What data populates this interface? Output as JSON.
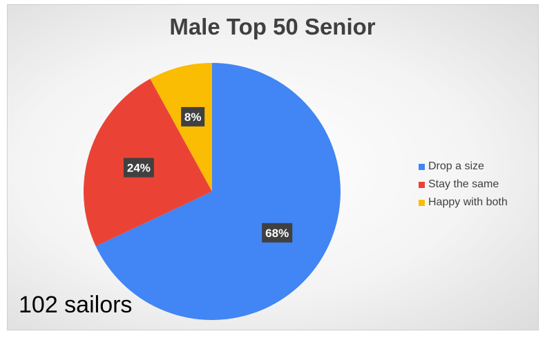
{
  "chart_data": {
    "type": "pie",
    "title": "Male Top 50 Senior",
    "categories": [
      "Drop a size",
      "Stay the same",
      "Happy with both"
    ],
    "values": [
      68,
      24,
      8
    ],
    "data_labels": [
      "68%",
      "24%",
      "8%"
    ],
    "colors": [
      "#4285f4",
      "#ea4335",
      "#fbbc04"
    ],
    "start_angle_deg": 0,
    "direction": "clockwise",
    "legend_position": "right"
  },
  "caption": "102 sailors"
}
